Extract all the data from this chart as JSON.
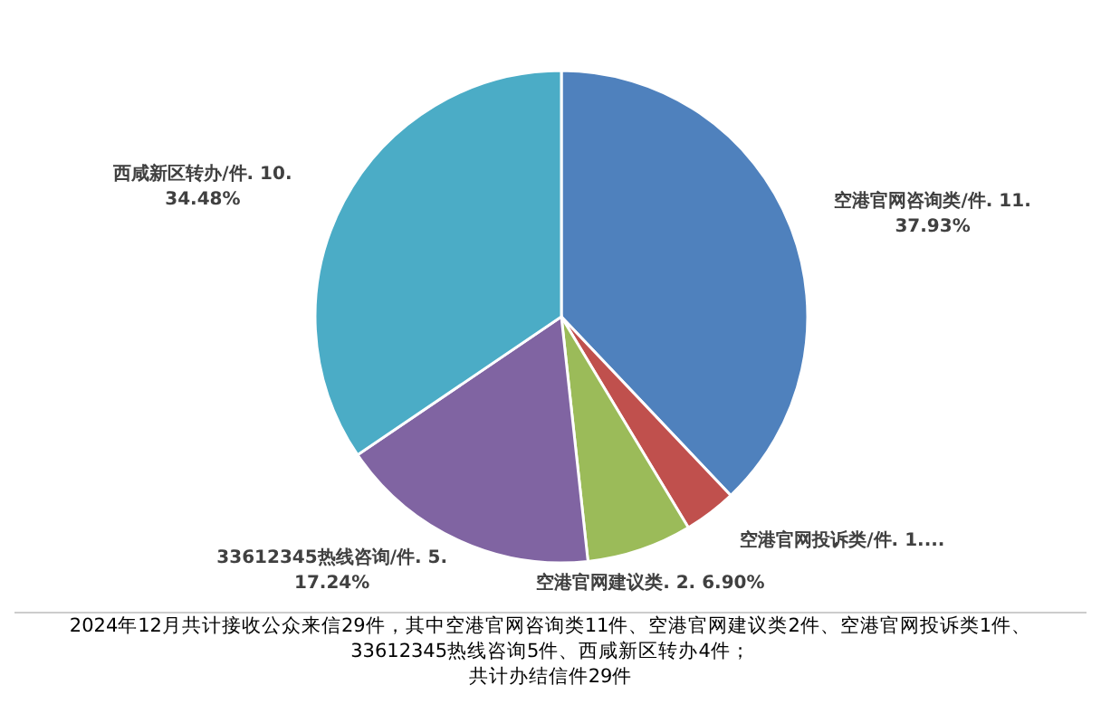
{
  "chart_data": {
    "type": "pie",
    "categories": [
      "空港官网咨询类/件.",
      "空港官网投诉类/件.",
      "空港官网建议类.",
      "33612345热线咨询/件.",
      "西咸新区转办/件."
    ],
    "values": [
      11,
      1,
      2,
      5,
      10
    ],
    "colors": [
      "#4f81bd",
      "#c0504d",
      "#9bbb59",
      "#8064a2",
      "#4bacc6"
    ],
    "value_labels": [
      "11. 37.93%",
      "1....",
      "2. 6.90%",
      "5. 17.24%",
      "10. 34.48%"
    ],
    "legend": false,
    "annotations": [
      "2024年12月共计接收公众来信29件，其中空港官网咨询类11件、空港官网建议类2件、空港官网投诉类1件、33612345热线咨询5件、西咸新区转办4件；",
      "共计办结信件29件"
    ]
  }
}
